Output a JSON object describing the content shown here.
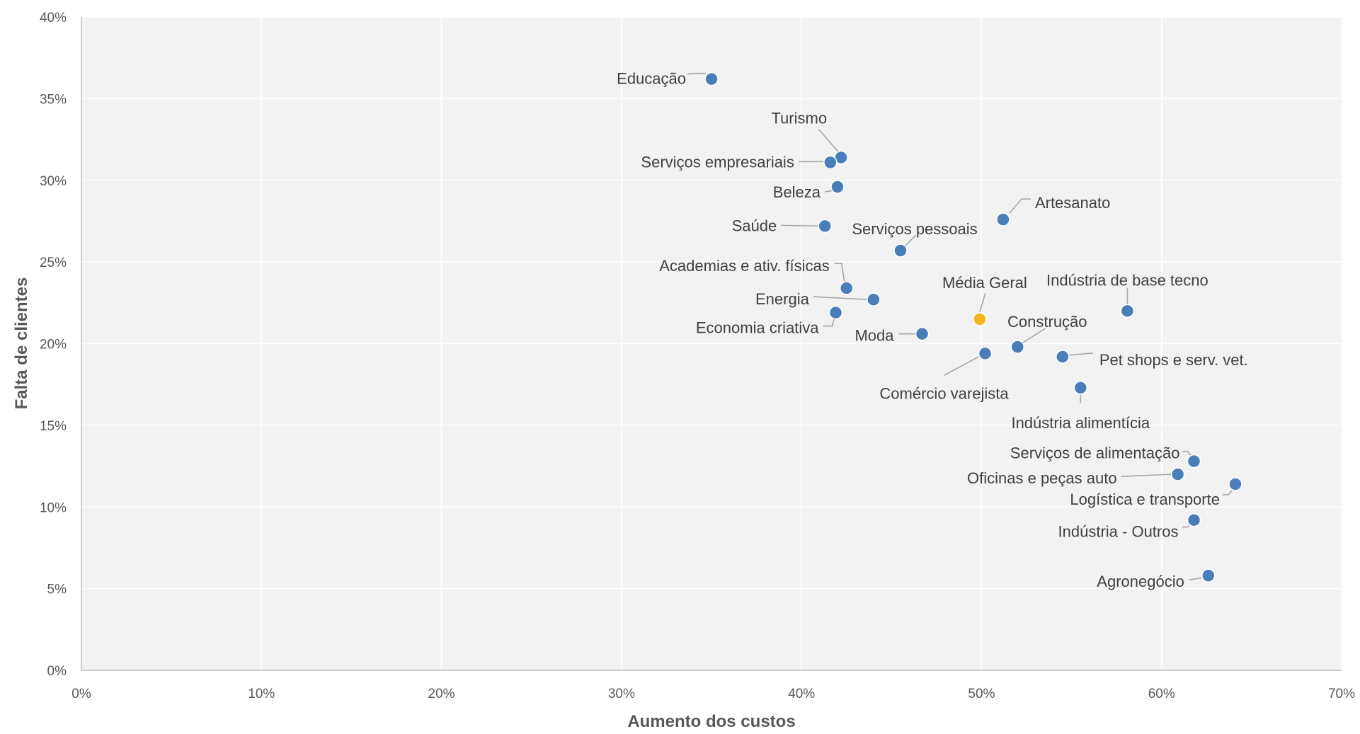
{
  "chart_data": {
    "type": "scatter",
    "xlabel": "Aumento dos custos",
    "ylabel": "Falta de clientes",
    "xlim": [
      0,
      0.7
    ],
    "ylim": [
      0,
      0.4
    ],
    "x_ticks": [
      "0%",
      "10%",
      "20%",
      "30%",
      "40%",
      "50%",
      "60%",
      "70%"
    ],
    "y_ticks": [
      "0%",
      "5%",
      "10%",
      "15%",
      "20%",
      "25%",
      "30%",
      "35%",
      "40%"
    ],
    "grid": true,
    "colors": {
      "point": "#4a7ebb",
      "highlight": "#f2b61a",
      "plot_bg": "#f2f2f2"
    },
    "points": [
      {
        "label": "Educação",
        "x": 0.35,
        "y": 0.362
      },
      {
        "label": "Turismo",
        "x": 0.422,
        "y": 0.314
      },
      {
        "label": "Serviços empresariais",
        "x": 0.416,
        "y": 0.311
      },
      {
        "label": "Beleza",
        "x": 0.42,
        "y": 0.296
      },
      {
        "label": "Artesanato",
        "x": 0.512,
        "y": 0.276
      },
      {
        "label": "Saúde",
        "x": 0.413,
        "y": 0.272
      },
      {
        "label": "Serviços pessoais",
        "x": 0.455,
        "y": 0.257
      },
      {
        "label": "Academias e ativ. físicas",
        "x": 0.425,
        "y": 0.234
      },
      {
        "label": "Energia",
        "x": 0.44,
        "y": 0.227
      },
      {
        "label": "Média Geral",
        "x": 0.499,
        "y": 0.215,
        "highlight": true
      },
      {
        "label": "Indústria de base tecno",
        "x": 0.581,
        "y": 0.22
      },
      {
        "label": "Economia criativa",
        "x": 0.419,
        "y": 0.219
      },
      {
        "label": "Moda",
        "x": 0.467,
        "y": 0.206
      },
      {
        "label": "Construção",
        "x": 0.52,
        "y": 0.198
      },
      {
        "label": "Comércio varejista",
        "x": 0.502,
        "y": 0.194
      },
      {
        "label": "Pet shops e serv. vet.",
        "x": 0.545,
        "y": 0.192
      },
      {
        "label": "Indústria alimentícia",
        "x": 0.555,
        "y": 0.173
      },
      {
        "label": "Serviços de alimentação",
        "x": 0.618,
        "y": 0.128
      },
      {
        "label": "Oficinas e peças auto",
        "x": 0.609,
        "y": 0.12
      },
      {
        "label": "Logística e transporte",
        "x": 0.641,
        "y": 0.114
      },
      {
        "label": "Indústria - Outros",
        "x": 0.618,
        "y": 0.092
      },
      {
        "label": "Agronegócio",
        "x": 0.626,
        "y": 0.058
      }
    ]
  }
}
